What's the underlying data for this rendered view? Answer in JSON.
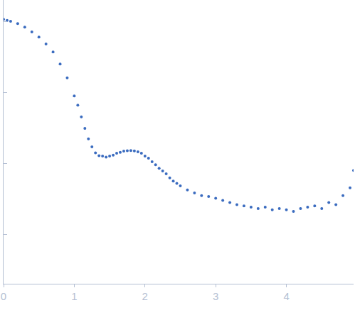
{
  "chart_data": {
    "type": "scatter",
    "x": [
      0.0,
      0.05,
      0.1,
      0.2,
      0.3,
      0.4,
      0.5,
      0.6,
      0.7,
      0.8,
      0.9,
      1.0,
      1.05,
      1.1,
      1.15,
      1.2,
      1.25,
      1.3,
      1.35,
      1.4,
      1.45,
      1.5,
      1.55,
      1.6,
      1.65,
      1.7,
      1.75,
      1.8,
      1.85,
      1.9,
      1.95,
      2.0,
      2.05,
      2.1,
      2.15,
      2.2,
      2.25,
      2.3,
      2.35,
      2.4,
      2.45,
      2.5,
      2.6,
      2.7,
      2.8,
      2.9,
      3.0,
      3.1,
      3.2,
      3.3,
      3.4,
      3.5,
      3.6,
      3.7,
      3.8,
      3.9,
      4.0,
      4.1,
      4.2,
      4.3,
      4.4,
      4.5,
      4.6,
      4.7,
      4.8,
      4.9,
      4.95
    ],
    "values": [
      1.07,
      1.03,
      1.0,
      0.93,
      0.83,
      0.71,
      0.6,
      0.48,
      0.37,
      0.25,
      0.16,
      0.089,
      0.066,
      0.045,
      0.031,
      0.022,
      0.017,
      0.014,
      0.0128,
      0.0126,
      0.0122,
      0.0126,
      0.013,
      0.0138,
      0.0142,
      0.0148,
      0.015,
      0.0151,
      0.0149,
      0.0145,
      0.0138,
      0.0126,
      0.0118,
      0.0105,
      0.0095,
      0.0085,
      0.0078,
      0.0071,
      0.0062,
      0.0056,
      0.0052,
      0.0048,
      0.0042,
      0.0038,
      0.0035,
      0.0034,
      0.0032,
      0.003,
      0.0028,
      0.0026,
      0.0025,
      0.0024,
      0.0023,
      0.0024,
      0.0022,
      0.0023,
      0.0022,
      0.0021,
      0.0023,
      0.0024,
      0.0025,
      0.0023,
      0.0028,
      0.0026,
      0.0035,
      0.0045,
      0.0079
    ],
    "color": "#3a6bbf",
    "marker": "circle",
    "log": "y",
    "xlim": [
      0,
      4.95
    ],
    "xticks": [
      0,
      1,
      2,
      3,
      4
    ],
    "ylim": [
      0.0002,
      2.0
    ],
    "yticks": [
      0.001,
      0.01,
      0.1,
      1
    ],
    "tick_labels": "x",
    "grid": false
  }
}
